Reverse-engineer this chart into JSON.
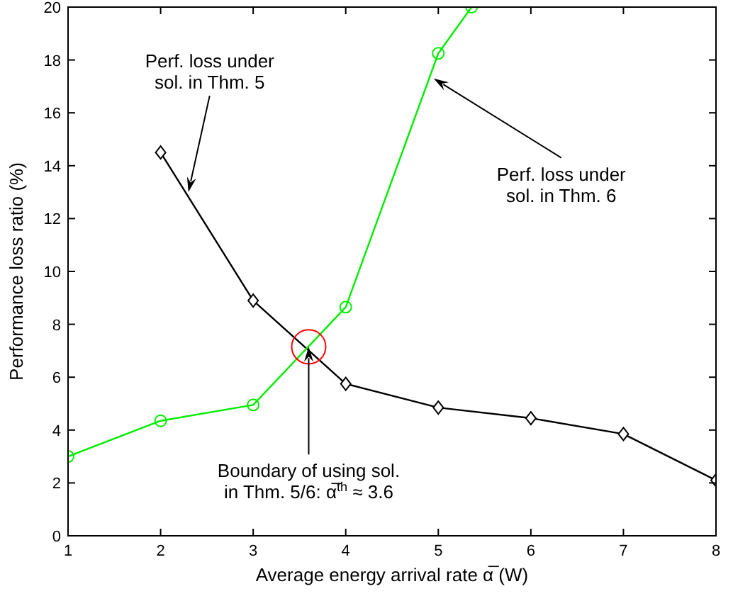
{
  "chart_data": {
    "type": "line",
    "xlabel": "Average energy arrival rate α̅ (W)",
    "ylabel": "Performance loss ratio (%)",
    "xlim": [
      1,
      8
    ],
    "xticks": [
      1,
      2,
      3,
      4,
      5,
      6,
      7,
      8
    ],
    "ylim": [
      0,
      20
    ],
    "yticks": [
      0,
      2,
      4,
      6,
      8,
      10,
      12,
      14,
      16,
      18,
      20
    ],
    "grid": false,
    "series": [
      {
        "color": "#000000",
        "marker": "diamond",
        "x": [
          2,
          3,
          4,
          5,
          6,
          7,
          8
        ],
        "values": [
          14.5,
          8.9,
          5.75,
          4.85,
          4.45,
          3.85,
          2.1
        ]
      },
      {
        "color": "#00ee00",
        "marker": "circle",
        "x": [
          1,
          2,
          3,
          4,
          5,
          5.36
        ],
        "values": [
          3.0,
          4.35,
          4.95,
          8.65,
          18.25,
          20
        ]
      }
    ],
    "annotations": [
      {
        "text": "Perf. loss under\nsol. in Thm. 5",
        "x": 2.3,
        "y": 13
      },
      {
        "text": "Perf. loss under\nsol. in Thm. 6",
        "x": 4.95,
        "y": 17.3
      },
      {
        "text": "Boundary of using sol.\nin Thm. 5/6: α̅$^{th}$ ≈ 3.6",
        "x": 3.6,
        "y": 7.15
      }
    ]
  }
}
